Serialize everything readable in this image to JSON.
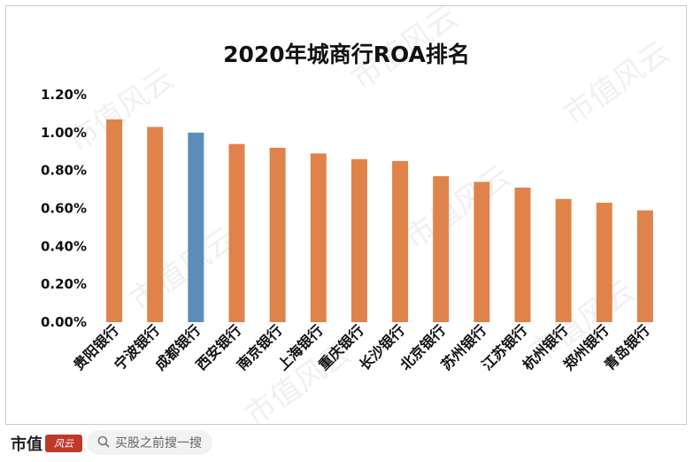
{
  "chart_data": {
    "type": "bar",
    "title": "2020年城商行ROA排名",
    "categories": [
      "贵阳银行",
      "宁波银行",
      "成都银行",
      "西安银行",
      "南京银行",
      "上海银行",
      "重庆银行",
      "长沙银行",
      "北京银行",
      "苏州银行",
      "江苏银行",
      "杭州银行",
      "郑州银行",
      "青岛银行"
    ],
    "values": [
      1.07,
      1.03,
      1.0,
      0.94,
      0.92,
      0.89,
      0.86,
      0.85,
      0.77,
      0.74,
      0.71,
      0.65,
      0.63,
      0.59
    ],
    "unit": "%",
    "ylim": [
      0,
      1.2
    ],
    "yticks": [
      "0.00%",
      "0.20%",
      "0.40%",
      "0.60%",
      "0.80%",
      "1.00%",
      "1.20%"
    ],
    "grid": false,
    "legend": "none",
    "colors": {
      "default": "#E0834A",
      "highlight": "#5B8DB8"
    },
    "highlight_category": "成都银行"
  },
  "watermark": {
    "text": "市值风云"
  },
  "footer": {
    "brand_text": "市值",
    "brand_mark": "风云",
    "search_icon": "search-icon",
    "search_placeholder": "买股之前搜一搜"
  }
}
